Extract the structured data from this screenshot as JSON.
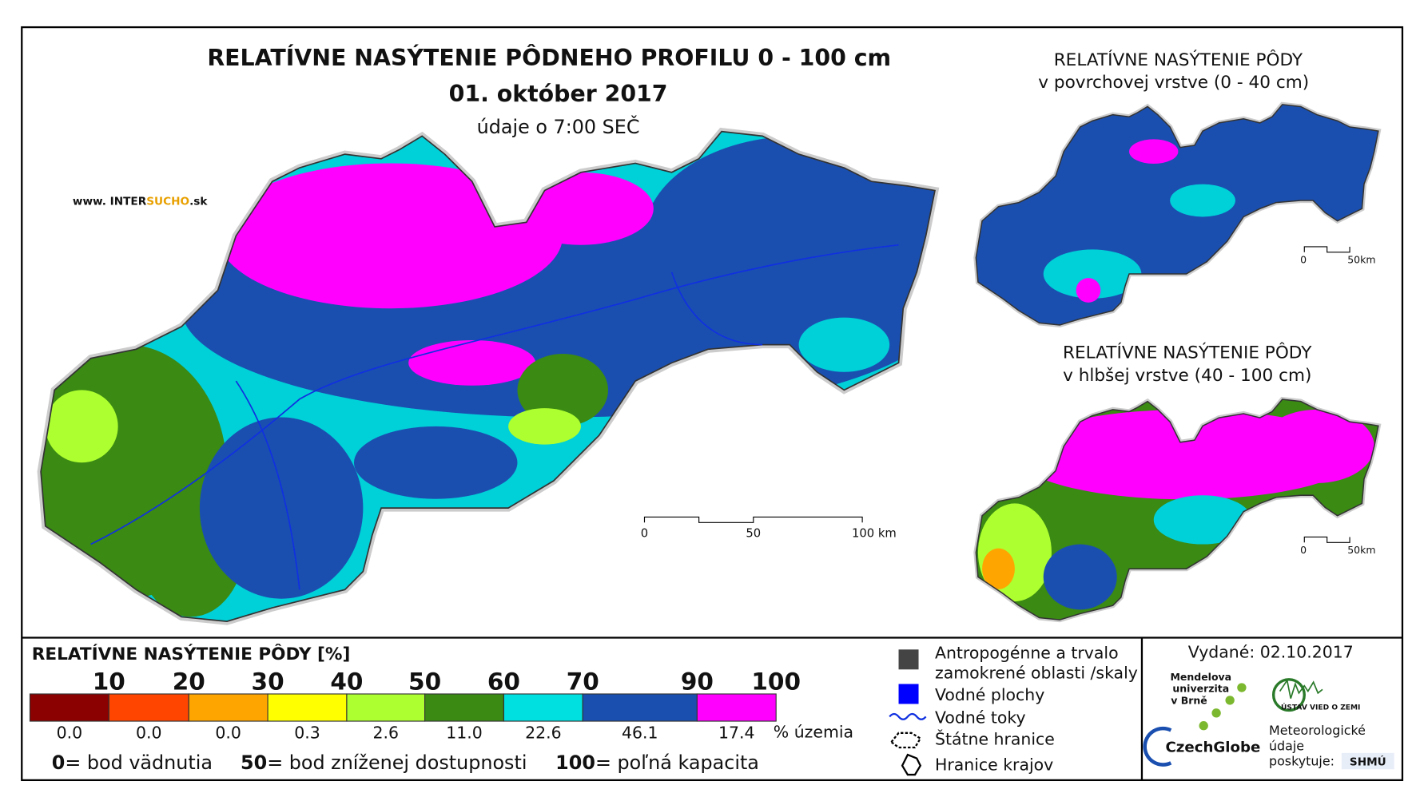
{
  "header": {
    "title": "RELATÍVNE NASÝTENIE PÔDNEHO PROFILU 0 - 100 cm",
    "date": "01. október 2017",
    "time_note": "údaje o 7:00 SEČ",
    "website": [
      "www. INTER",
      "SUCHO",
      ".sk"
    ]
  },
  "main_map": {
    "scale": [
      "0",
      "50",
      "100 km"
    ]
  },
  "insets": [
    {
      "title": "RELATÍVNE NASÝTENIE PÔDY",
      "subtitle": "v povrchovej vrstve (0 - 40 cm)",
      "scale": [
        "0",
        "50km"
      ]
    },
    {
      "title": "RELATÍVNE NASÝTENIE PÔDY",
      "subtitle": "v hlbšej vrstve (40 - 100 cm)",
      "scale": [
        "0",
        "50km"
      ]
    }
  ],
  "legend": {
    "title": "RELATÍVNE NASÝTENIE PÔDY [%]",
    "breaks": [
      10,
      20,
      30,
      40,
      50,
      60,
      70,
      90,
      100
    ],
    "classes": [
      {
        "color": "#8b0000",
        "share": "0.0"
      },
      {
        "color": "#ff4500",
        "share": "0.0"
      },
      {
        "color": "#ffa500",
        "share": "0.0"
      },
      {
        "color": "#ffff00",
        "share": "0.3"
      },
      {
        "color": "#adff2f",
        "share": "2.6"
      },
      {
        "color": "#3a8a14",
        "share": "11.0"
      },
      {
        "color": "#00e0e0",
        "share": "22.6"
      },
      {
        "color": "#1a4fb0",
        "share": "46.1"
      },
      {
        "color": "#ff00ff",
        "share": "17.4"
      }
    ],
    "share_unit": "% územia",
    "notes": [
      {
        "value": "0",
        "text": "= bod vädnutia"
      },
      {
        "value": "50",
        "text": "= bod zníženej dostupnosti"
      },
      {
        "value": "100",
        "text": "= poľná kapacita"
      }
    ]
  },
  "symbols": {
    "anthropogenic": [
      "Antropogénne a trvalo",
      "zamokrené oblasti /skaly"
    ],
    "water": "Vodné plochy",
    "rivers": "Vodné toky",
    "state_border": "Štátne hranice",
    "regions": "Hranice krajov"
  },
  "footer": {
    "issued": "Vydané: 02.10.2017",
    "mendel": [
      "Mendelova",
      "univerzita",
      "v Brně"
    ],
    "czechglobe": "CzechGlobe",
    "institute": "ÚSTAV VIED O ZEMI",
    "meteo": [
      "Meteorologické",
      "údaje",
      "poskytuje:"
    ],
    "shmu": "SHMÚ"
  }
}
